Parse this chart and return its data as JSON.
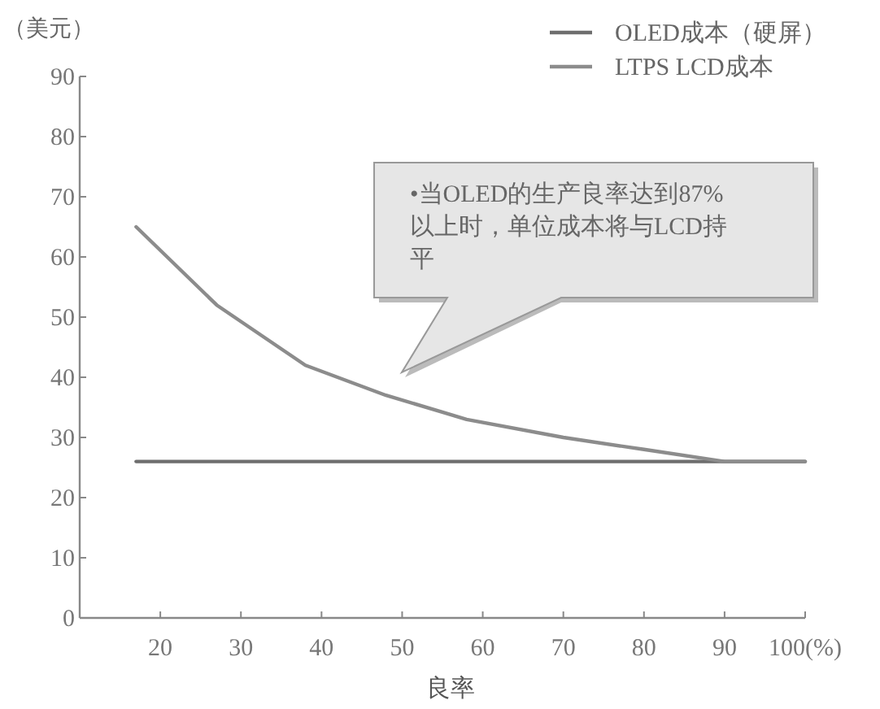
{
  "chart_data": {
    "type": "line",
    "ylabel": "（美元）",
    "xlabel": "良率",
    "xlim": [
      10,
      100
    ],
    "ylim": [
      0,
      90
    ],
    "xticks": [
      20,
      30,
      40,
      50,
      60,
      70,
      80,
      90,
      {
        "value": 100,
        "label": "100(%)"
      }
    ],
    "yticks": [
      0,
      10,
      20,
      30,
      40,
      50,
      60,
      70,
      80,
      90
    ],
    "grid": false,
    "legend": "top right",
    "marker": "none",
    "line_style": "solid",
    "series": [
      {
        "name": "OLED成本（硬屏）",
        "color": "#6e6e6e",
        "x": [
          17,
          100
        ],
        "values": [
          26,
          26
        ]
      },
      {
        "name": "LTPS LCD成本",
        "color": "#8c8c8c",
        "x": [
          17,
          27,
          38,
          48,
          58,
          70,
          80,
          90,
          100
        ],
        "values": [
          65,
          52,
          42,
          37,
          33,
          30,
          28,
          26,
          26
        ]
      }
    ],
    "annotations": [
      "•当OLED的生产良率达到87%以上时，单位成本将与LCD持平"
    ]
  }
}
